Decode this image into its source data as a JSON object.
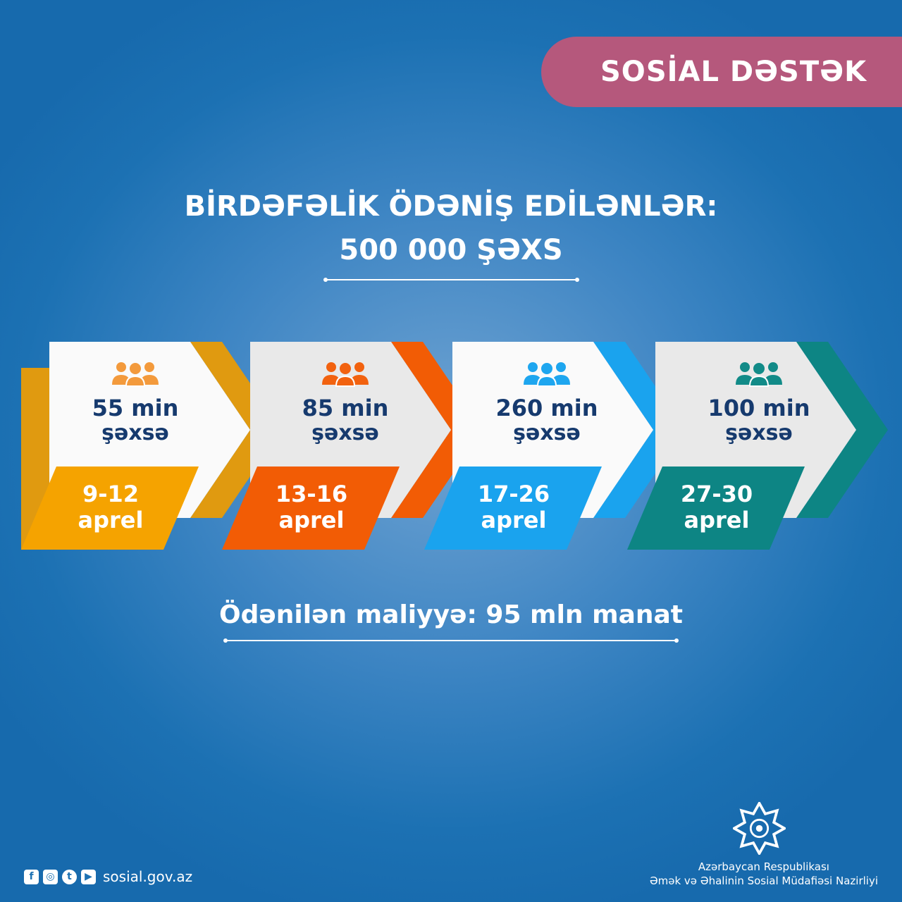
{
  "badge": "SOSİAL DƏSTƏK",
  "headline": {
    "line1": "BİRDƏFƏLİK ÖDƏNİŞ EDİLƏNLƏR:",
    "line2": "500 000 ŞƏXS"
  },
  "periods": [
    {
      "count": "55 min",
      "unit": "şəxsə",
      "dates": "9-12",
      "month": "aprel",
      "color": "#f5a300",
      "stripe": "#e09a10",
      "icon": "people-group-icon",
      "iconColor": "#f39a3c"
    },
    {
      "count": "85 min",
      "unit": "şəxsə",
      "dates": "13-16",
      "month": "aprel",
      "color": "#f25c05",
      "stripe": "#f25c05",
      "icon": "people-group-icon",
      "iconColor": "#f2620f"
    },
    {
      "count": "260 min",
      "unit": "şəxsə",
      "dates": "17-26",
      "month": "aprel",
      "color": "#1aa3ee",
      "stripe": "#1aa3ee",
      "icon": "people-group-icon",
      "iconColor": "#1ea6ef"
    },
    {
      "count": "100 min",
      "unit": "şəxsə",
      "dates": "27-30",
      "month": "aprel",
      "color": "#0d8584",
      "stripe": "#0d8584",
      "icon": "people-group-icon",
      "iconColor": "#128b88"
    }
  ],
  "finance": "Ödənilən maliyyə: 95 mln manat",
  "footer": {
    "website": "sosial.gov.az",
    "social": [
      "facebook-icon",
      "instagram-icon",
      "twitter-icon",
      "youtube-icon"
    ],
    "org_line1": "Azərbaycan Respublikası",
    "org_line2": "Əmək və Əhalinin Sosial Müdafiəsi Nazirliyi"
  }
}
